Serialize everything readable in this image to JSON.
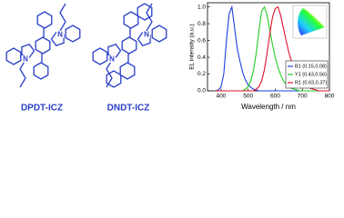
{
  "structures": [
    {
      "label": "DPDT-ICZ",
      "atoms": [
        "N",
        "N"
      ]
    },
    {
      "label": "DNDT-ICZ",
      "atoms": [
        "N",
        "N"
      ]
    }
  ],
  "chart_data": {
    "type": "line",
    "x_label": "Wavelength / nm",
    "y_label": "EL intensity (a.u.)",
    "x": [
      380,
      390,
      400,
      410,
      420,
      430,
      440,
      450,
      460,
      470,
      480,
      490,
      500,
      510,
      520,
      530,
      540,
      550,
      560,
      570,
      580,
      590,
      600,
      610,
      620,
      630,
      640,
      650,
      660,
      670,
      680,
      690,
      700,
      710,
      720,
      730,
      740,
      750,
      760,
      770,
      780,
      790,
      800
    ],
    "series": [
      {
        "name": "B1 (0.15,0.08)",
        "color": "#1f3fe0",
        "values": [
          0,
          0.01,
          0.05,
          0.2,
          0.6,
          0.92,
          1.0,
          0.75,
          0.5,
          0.35,
          0.22,
          0.13,
          0.07,
          0.04,
          0.02,
          0.01,
          0,
          0,
          0,
          0,
          0,
          0,
          0,
          0,
          0,
          0,
          0,
          0,
          0,
          0,
          0,
          0,
          0,
          0,
          0,
          0,
          0,
          0,
          0,
          0,
          0,
          0,
          0
        ]
      },
      {
        "name": "Y1 (0.43,0.56)",
        "color": "#22cc22",
        "values": [
          0,
          0,
          0,
          0,
          0,
          0,
          0,
          0,
          0,
          0,
          0,
          0.02,
          0.05,
          0.12,
          0.25,
          0.45,
          0.72,
          0.95,
          1.0,
          0.9,
          0.72,
          0.55,
          0.4,
          0.28,
          0.19,
          0.12,
          0.08,
          0.05,
          0.03,
          0.02,
          0.01,
          0,
          0,
          0,
          0,
          0,
          0,
          0,
          0,
          0,
          0,
          0,
          0
        ]
      },
      {
        "name": "R1 (0.63,0.37)",
        "color": "#e0102a",
        "values": [
          0,
          0,
          0,
          0,
          0,
          0,
          0,
          0,
          0,
          0,
          0,
          0,
          0,
          0,
          0,
          0.02,
          0.05,
          0.12,
          0.25,
          0.45,
          0.68,
          0.88,
          0.98,
          1.0,
          0.9,
          0.75,
          0.6,
          0.46,
          0.35,
          0.26,
          0.19,
          0.14,
          0.1,
          0.07,
          0.05,
          0.03,
          0.02,
          0.01,
          0,
          0,
          0,
          0,
          0
        ]
      }
    ],
    "xlim": [
      350,
      800
    ],
    "ylim": [
      0,
      1.05
    ],
    "xticks": [
      400,
      500,
      600,
      700,
      800
    ],
    "yticks": [
      {
        "value": 0,
        "label": "0.0"
      },
      {
        "value": 0.2,
        "label": "0.2"
      },
      {
        "value": 0.4,
        "label": "0.4"
      },
      {
        "value": 0.6,
        "label": "0.6"
      },
      {
        "value": 0.8,
        "label": "0.8"
      },
      {
        "value": 1,
        "label": "1.0"
      }
    ],
    "legend": "lower-right"
  }
}
